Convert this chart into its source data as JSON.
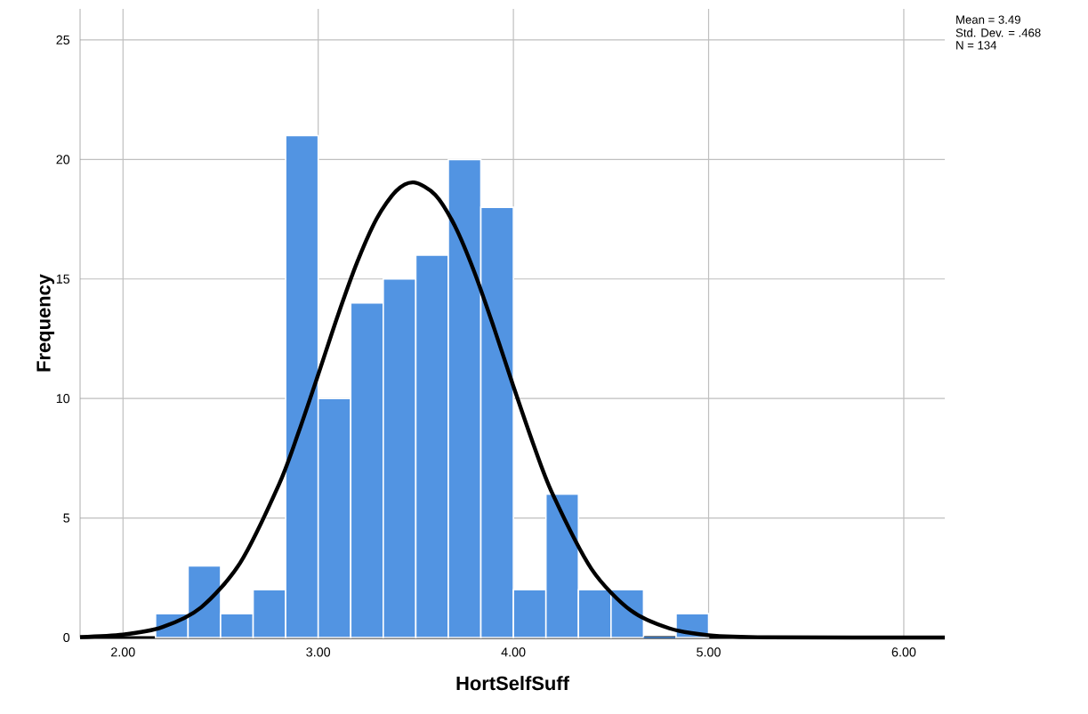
{
  "chart_data": {
    "type": "histogram",
    "xlabel": "HortSelfSuff",
    "ylabel": "Frequency",
    "bins": [
      2.1667,
      2.3333,
      2.5,
      2.6667,
      2.8333,
      3.0,
      3.1667,
      3.3333,
      3.5,
      3.6667,
      3.8333,
      4.0,
      4.1667,
      4.3333,
      4.5,
      4.6667,
      4.8333,
      5.0
    ],
    "values": [
      1,
      3,
      1,
      2,
      21,
      10,
      14,
      15,
      16,
      20,
      18,
      2,
      6,
      2,
      2,
      0,
      1
    ],
    "color": "#5294e2",
    "series": [
      {
        "type": "line",
        "color": "#000000",
        "x": [
          1.78,
          2.0,
          2.2,
          2.4,
          2.6,
          2.8,
          2.9,
          3.0,
          3.1,
          3.2,
          3.3,
          3.4,
          3.49,
          3.6,
          3.7,
          3.8,
          3.9,
          4.0,
          4.1,
          4.2,
          4.4,
          4.6,
          4.8,
          5.0,
          5.3,
          6.21
        ],
        "values": [
          0.02,
          0.12,
          0.43,
          1.26,
          3.12,
          6.42,
          8.6,
          11.0,
          13.46,
          15.71,
          17.53,
          18.69,
          19.04,
          18.52,
          17.22,
          15.29,
          12.97,
          10.51,
          8.14,
          6.02,
          2.87,
          1.14,
          0.38,
          0.1,
          0.01,
          0.0
        ]
      }
    ],
    "xlim": [
      1.78,
      6.21
    ],
    "ylim": [
      0,
      26.3
    ],
    "xticks": [
      {
        "value": 2,
        "label": "2.00"
      },
      {
        "value": 3,
        "label": "3.00"
      },
      {
        "value": 4,
        "label": "4.00"
      },
      {
        "value": 5,
        "label": "5.00"
      },
      {
        "value": 6,
        "label": "6.00"
      }
    ],
    "yticks": [
      0,
      5,
      10,
      15,
      20,
      25
    ],
    "grid": true,
    "annotations": [
      "Mean = 3.49",
      "Std. Dev. = .468",
      "N = 134"
    ]
  }
}
